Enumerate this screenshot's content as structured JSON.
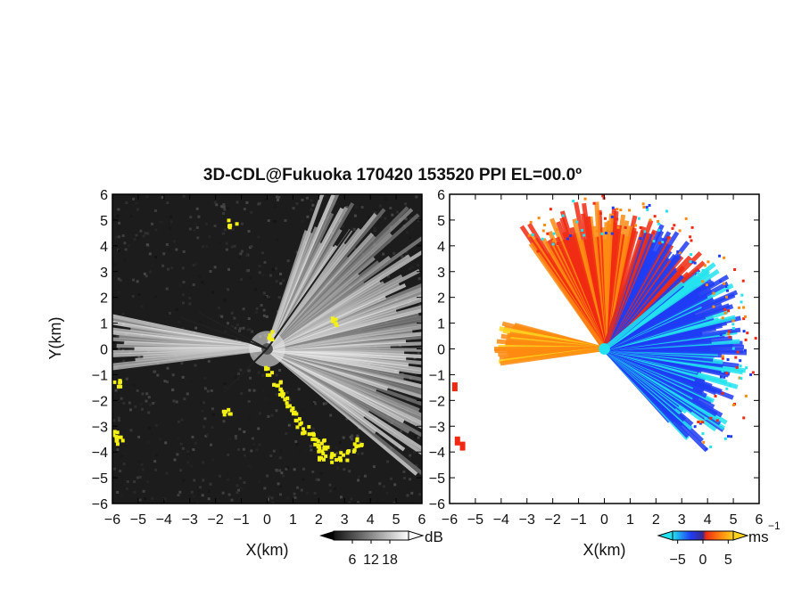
{
  "title": "3D-CDL@Fukuoka 170420 153520 PPI EL=00.0º",
  "chart_data": [
    {
      "type": "heatmap",
      "panel": "left",
      "quantity": "reflectivity",
      "xlabel": "X(km)",
      "ylabel": "Y(km)",
      "xlim": [
        -6,
        6
      ],
      "ylim": [
        -6,
        6
      ],
      "xticks": [
        "−6",
        "−5",
        "−4",
        "−3",
        "−2",
        "−1",
        "0",
        "1",
        "2",
        "3",
        "4",
        "5",
        "6"
      ],
      "yticks": [
        "6",
        "5",
        "4",
        "3",
        "2",
        "1",
        "0",
        "−1",
        "−2",
        "−3",
        "−4",
        "−5",
        "−6"
      ],
      "colorbar": {
        "unit": "dB",
        "ticks": [
          "6",
          "12",
          "18"
        ],
        "range": [
          0,
          24
        ],
        "colormap": "grayscale",
        "extend": "both"
      },
      "highlight_color": "#f3f013",
      "background_color": "#1c1c1c"
    },
    {
      "type": "heatmap",
      "panel": "right",
      "quantity": "radial velocity",
      "xlabel": "X(km)",
      "ylabel": "",
      "xlim": [
        -6,
        6
      ],
      "ylim": [
        -6,
        6
      ],
      "xticks": [
        "−6",
        "−5",
        "−4",
        "−3",
        "−2",
        "−1",
        "0",
        "1",
        "2",
        "3",
        "4",
        "5",
        "6"
      ],
      "yticks": [
        "6",
        "5",
        "4",
        "3",
        "2",
        "1",
        "0",
        "−1",
        "−2",
        "−3",
        "−4",
        "−5",
        "−6"
      ],
      "colorbar": {
        "unit": "ms",
        "unit_exp": "−1",
        "ticks": [
          "−5",
          "0",
          "5"
        ],
        "range": [
          -6,
          6
        ],
        "colormap": "cyan-blue-red-orange-yellow",
        "extend": "both"
      },
      "colors": {
        "cyan": "#22e3ef",
        "blue": "#1f3cf5",
        "red": "#f02a12",
        "orange": "#ff8a10",
        "yellow": "#ffd21e"
      }
    }
  ]
}
